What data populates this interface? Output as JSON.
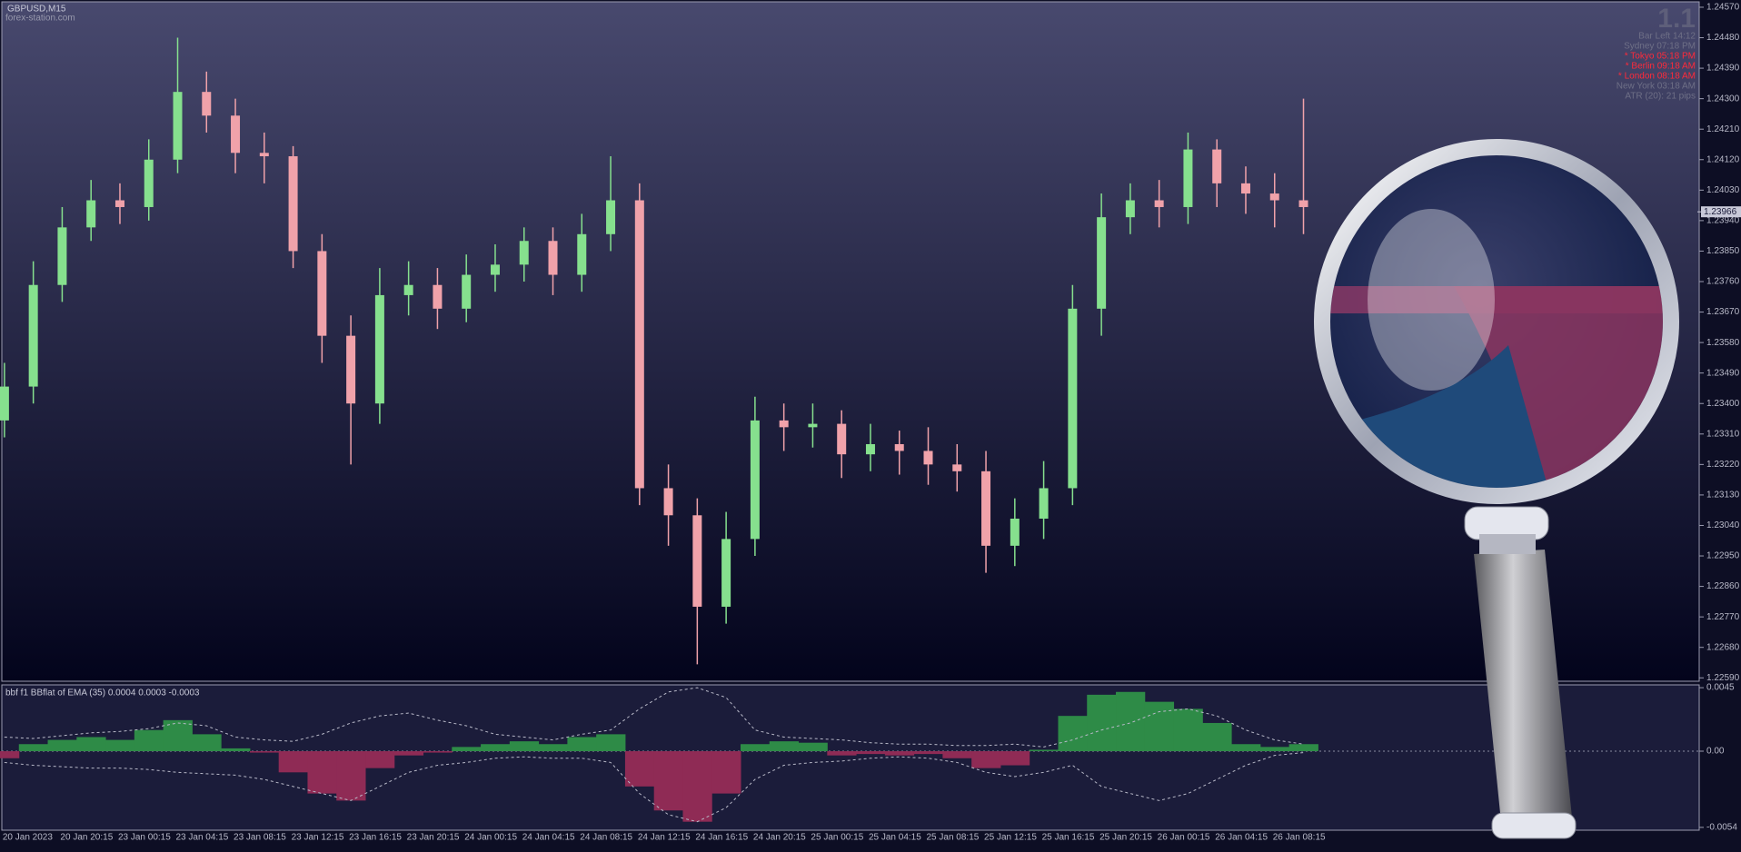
{
  "chart_data": [
    {
      "type": "candlestick",
      "title": "GBPUSD,M15",
      "subtitle": "forex-station.com",
      "categories": [
        "20 Jan 2023",
        null,
        "20 Jan 20:15",
        null,
        "23 Jan 00:15",
        null,
        "23 Jan 04:15",
        null,
        "23 Jan 08:15",
        null,
        "23 Jan 12:15",
        null,
        "23 Jan 16:15",
        null,
        "23 Jan 20:15",
        null,
        "24 Jan 00:15",
        null,
        "24 Jan 04:15",
        null,
        "24 Jan 08:15",
        null,
        "24 Jan 12:15",
        null,
        "24 Jan 16:15",
        null,
        "24 Jan 20:15",
        null,
        "25 Jan 00:15",
        null,
        "25 Jan 04:15",
        null,
        "25 Jan 08:15",
        null,
        "25 Jan 12:15",
        null,
        "25 Jan 16:15",
        null,
        "25 Jan 20:15",
        null,
        "26 Jan 00:15",
        null,
        "26 Jan 04:15",
        null,
        "26 Jan 08:15",
        null
      ],
      "open": [
        1.2335,
        1.2345,
        1.2375,
        1.2392,
        1.24,
        1.2398,
        1.2412,
        1.2432,
        1.2425,
        1.2414,
        1.2413,
        1.2385,
        1.236,
        1.234,
        1.2372,
        1.2375,
        1.2368,
        1.2378,
        1.2381,
        1.2388,
        1.2378,
        1.239,
        1.24,
        1.2315,
        1.2307,
        1.228,
        1.23,
        1.2335,
        1.2333,
        1.2334,
        1.2325,
        1.2328,
        1.2326,
        1.2322,
        1.232,
        1.2298,
        1.2306,
        1.2315,
        1.2368,
        1.2395,
        1.24,
        1.2398,
        1.2415,
        1.2405,
        1.2402,
        1.24
      ],
      "high": [
        1.2352,
        1.2382,
        1.2398,
        1.2406,
        1.2405,
        1.2418,
        1.2448,
        1.2438,
        1.243,
        1.242,
        1.2416,
        1.239,
        1.2366,
        1.238,
        1.2382,
        1.238,
        1.2384,
        1.2387,
        1.2392,
        1.2392,
        1.2396,
        1.2413,
        1.2405,
        1.2322,
        1.2312,
        1.2308,
        1.2342,
        1.234,
        1.234,
        1.2338,
        1.2334,
        1.2332,
        1.2333,
        1.2328,
        1.2326,
        1.2312,
        1.2323,
        1.2375,
        1.2402,
        1.2405,
        1.2406,
        1.242,
        1.2418,
        1.241,
        1.2408,
        1.243
      ],
      "low": [
        1.233,
        1.234,
        1.237,
        1.2388,
        1.2393,
        1.2394,
        1.2408,
        1.242,
        1.2408,
        1.2405,
        1.238,
        1.2352,
        1.2322,
        1.2334,
        1.2366,
        1.2362,
        1.2364,
        1.2373,
        1.2376,
        1.2372,
        1.2373,
        1.2385,
        1.231,
        1.2298,
        1.2263,
        1.2275,
        1.2295,
        1.2326,
        1.2327,
        1.2318,
        1.232,
        1.2319,
        1.2316,
        1.2314,
        1.229,
        1.2292,
        1.23,
        1.231,
        1.236,
        1.239,
        1.2392,
        1.2393,
        1.2398,
        1.2396,
        1.2392,
        1.239
      ],
      "close": [
        1.2345,
        1.2375,
        1.2392,
        1.24,
        1.2398,
        1.2412,
        1.2432,
        1.2425,
        1.2414,
        1.2413,
        1.2385,
        1.236,
        1.234,
        1.2372,
        1.2375,
        1.2368,
        1.2378,
        1.2381,
        1.2388,
        1.2378,
        1.239,
        1.24,
        1.2315,
        1.2307,
        1.228,
        1.23,
        1.2335,
        1.2333,
        1.2334,
        1.2325,
        1.2328,
        1.2326,
        1.2322,
        1.232,
        1.2298,
        1.2306,
        1.2315,
        1.2368,
        1.2395,
        1.24,
        1.2398,
        1.2415,
        1.2405,
        1.2402,
        1.24,
        1.2398
      ],
      "up_color": "#86e08e",
      "down_color": "#f0a2aa",
      "ylim": [
        1.2258,
        1.24586
      ],
      "yticks": [
        {
          "value": 1.2457,
          "label": "1.24570"
        },
        {
          "value": 1.2448,
          "label": "1.24480"
        },
        {
          "value": 1.2439,
          "label": "1.24390"
        },
        {
          "value": 1.243,
          "label": "1.24300"
        },
        {
          "value": 1.2421,
          "label": "1.24210"
        },
        {
          "value": 1.2412,
          "label": "1.24120"
        },
        {
          "value": 1.2403,
          "label": "1.24030"
        },
        {
          "value": 1.2394,
          "label": "1.23940"
        },
        {
          "value": 1.2385,
          "label": "1.23850"
        },
        {
          "value": 1.2376,
          "label": "1.23760"
        },
        {
          "value": 1.2367,
          "label": "1.23670"
        },
        {
          "value": 1.2358,
          "label": "1.23580"
        },
        {
          "value": 1.2349,
          "label": "1.23490"
        },
        {
          "value": 1.234,
          "label": "1.23400"
        },
        {
          "value": 1.2331,
          "label": "1.23310"
        },
        {
          "value": 1.2322,
          "label": "1.23220"
        },
        {
          "value": 1.2313,
          "label": "1.23130"
        },
        {
          "value": 1.2304,
          "label": "1.23040"
        },
        {
          "value": 1.2295,
          "label": "1.22950"
        },
        {
          "value": 1.2286,
          "label": "1.22860"
        },
        {
          "value": 1.2277,
          "label": "1.22770"
        },
        {
          "value": 1.2268,
          "label": "1.22680"
        },
        {
          "value": 1.2259,
          "label": "1.22590"
        }
      ],
      "last_price": 1.23966,
      "badge": "1.1",
      "annotations": [
        {
          "text": "Bar Left  14:12",
          "color": "#6e6f86"
        },
        {
          "text": "Sydney  07:18 PM",
          "color": "#6e6f86"
        },
        {
          "text": "* Tokyo  05:18 PM",
          "color": "#ff2a3a"
        },
        {
          "text": "* Berlin  09:18 AM",
          "color": "#ff2a3a"
        },
        {
          "text": "* London  08:18 AM",
          "color": "#ff2a3a"
        },
        {
          "text": "New York  03:18 AM",
          "color": "#6e6f86"
        },
        {
          "text": "ATR (20): 21 pips",
          "color": "#6e6f86"
        }
      ]
    },
    {
      "type": "oscillator",
      "title": "bbf f1 BBflat of EMA (35) 0.0004 0.0003 -0.0003",
      "values": [
        -0.0005,
        0.0005,
        0.0008,
        0.001,
        0.0008,
        0.0015,
        0.0022,
        0.0012,
        0.0002,
        -0.0001,
        -0.0015,
        -0.003,
        -0.0035,
        -0.0012,
        -0.0003,
        -0.0001,
        0.0003,
        0.0005,
        0.0007,
        0.0005,
        0.001,
        0.0012,
        -0.0025,
        -0.0042,
        -0.005,
        -0.003,
        0.0005,
        0.0007,
        0.0006,
        -0.0003,
        -0.0002,
        -0.0003,
        -0.0002,
        -0.0005,
        -0.0012,
        -0.001,
        0.0001,
        0.0025,
        0.004,
        0.0042,
        0.0035,
        0.003,
        0.002,
        0.0005,
        0.0003,
        0.0005
      ],
      "upper": [
        0.001,
        0.0009,
        0.0011,
        0.0013,
        0.0014,
        0.0016,
        0.002,
        0.0018,
        0.001,
        0.0008,
        0.0007,
        0.0012,
        0.002,
        0.0025,
        0.0027,
        0.0022,
        0.0018,
        0.0012,
        0.001,
        0.0008,
        0.0012,
        0.0015,
        0.003,
        0.0042,
        0.0045,
        0.0038,
        0.0015,
        0.001,
        0.0009,
        0.0008,
        0.0006,
        0.0005,
        0.0005,
        0.0004,
        0.0004,
        0.0005,
        0.0003,
        0.0008,
        0.0015,
        0.002,
        0.0028,
        0.003,
        0.0025,
        0.0015,
        0.0008,
        0.0005
      ],
      "lower": [
        -0.0008,
        -0.001,
        -0.0011,
        -0.0012,
        -0.0012,
        -0.0013,
        -0.0015,
        -0.0016,
        -0.0017,
        -0.002,
        -0.0025,
        -0.003,
        -0.0035,
        -0.0025,
        -0.0015,
        -0.001,
        -0.0008,
        -0.0005,
        -0.0004,
        -0.0005,
        -0.0005,
        -0.0008,
        -0.003,
        -0.0045,
        -0.005,
        -0.004,
        -0.002,
        -0.001,
        -0.0008,
        -0.0007,
        -0.0005,
        -0.0004,
        -0.0005,
        -0.0008,
        -0.0015,
        -0.0018,
        -0.0015,
        -0.001,
        -0.0025,
        -0.003,
        -0.0035,
        -0.003,
        -0.002,
        -0.001,
        -0.0003,
        -0.0001
      ],
      "positive_color": "#2e8b47",
      "negative_color": "#8f2b55",
      "ylim": [
        -0.0056,
        0.0047
      ],
      "yticks": [
        0.0045,
        {
          "value": 0,
          "label": "0.00"
        },
        -0.0054
      ]
    }
  ]
}
